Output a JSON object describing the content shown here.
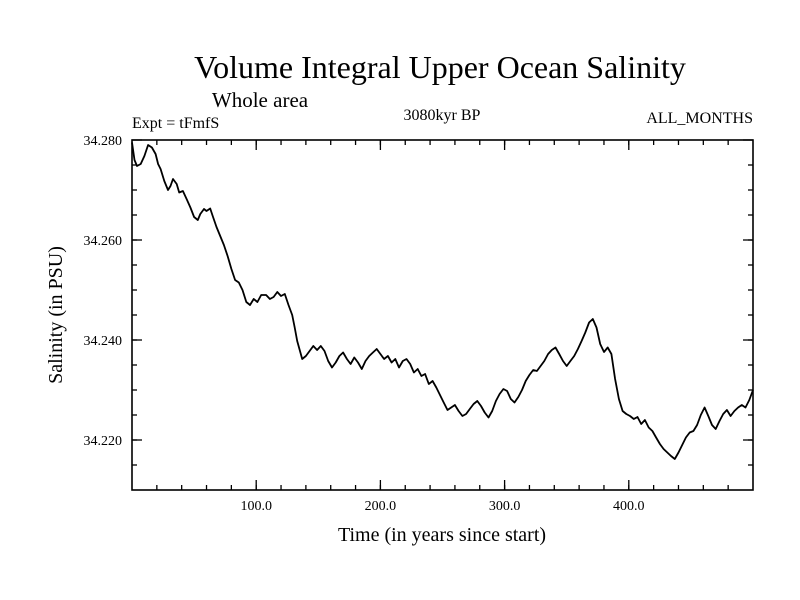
{
  "chart_data": {
    "type": "line",
    "title": "Volume Integral Upper Ocean Salinity",
    "subtitle": "Whole area",
    "experiment": "Expt = tFmfS",
    "period": "3080kyr BP",
    "months": "ALL_MONTHS",
    "xlabel": "Time (in years since start)",
    "ylabel": "Salinity (in PSU)",
    "xlim": [
      0,
      500
    ],
    "ylim": [
      34.21,
      34.28
    ],
    "x_ticks": [
      {
        "value": 100,
        "label": "100.0"
      },
      {
        "value": 200,
        "label": "200.0"
      },
      {
        "value": 300,
        "label": "300.0"
      },
      {
        "value": 400,
        "label": "400.0"
      }
    ],
    "y_ticks": [
      {
        "value": 34.28,
        "label": "34.280"
      },
      {
        "value": 34.26,
        "label": "34.260"
      },
      {
        "value": 34.24,
        "label": "34.240"
      },
      {
        "value": 34.22,
        "label": "34.220"
      }
    ],
    "x_minor_step": 20,
    "y_minor_step": 0.005,
    "series": [
      {
        "name": "Salinity",
        "points": [
          [
            0,
            34.2795
          ],
          [
            2,
            34.276
          ],
          [
            4,
            34.2748
          ],
          [
            7,
            34.2752
          ],
          [
            10,
            34.2768
          ],
          [
            13,
            34.279
          ],
          [
            16,
            34.2785
          ],
          [
            19,
            34.2772
          ],
          [
            21,
            34.2752
          ],
          [
            23,
            34.2742
          ],
          [
            26,
            34.2718
          ],
          [
            29,
            34.27
          ],
          [
            31,
            34.2708
          ],
          [
            33,
            34.2722
          ],
          [
            36,
            34.2712
          ],
          [
            38,
            34.2695
          ],
          [
            41,
            34.2698
          ],
          [
            44,
            34.2682
          ],
          [
            47,
            34.2665
          ],
          [
            50,
            34.2646
          ],
          [
            53,
            34.264
          ],
          [
            55,
            34.2652
          ],
          [
            58,
            34.2662
          ],
          [
            60,
            34.2658
          ],
          [
            63,
            34.2663
          ],
          [
            65,
            34.2648
          ],
          [
            68,
            34.2626
          ],
          [
            71,
            34.2608
          ],
          [
            74,
            34.259
          ],
          [
            77,
            34.2568
          ],
          [
            80,
            34.2542
          ],
          [
            83,
            34.252
          ],
          [
            86,
            34.2515
          ],
          [
            89,
            34.25
          ],
          [
            92,
            34.2476
          ],
          [
            95,
            34.247
          ],
          [
            98,
            34.2482
          ],
          [
            101,
            34.2476
          ],
          [
            104,
            34.249
          ],
          [
            108,
            34.249
          ],
          [
            111,
            34.2482
          ],
          [
            114,
            34.2486
          ],
          [
            117,
            34.2496
          ],
          [
            120,
            34.2488
          ],
          [
            123,
            34.2492
          ],
          [
            126,
            34.247
          ],
          [
            129,
            34.245
          ],
          [
            131,
            34.2425
          ],
          [
            133,
            34.2398
          ],
          [
            135,
            34.238
          ],
          [
            137,
            34.2362
          ],
          [
            140,
            34.2368
          ],
          [
            143,
            34.2378
          ],
          [
            146,
            34.2388
          ],
          [
            149,
            34.238
          ],
          [
            152,
            34.2388
          ],
          [
            155,
            34.2378
          ],
          [
            158,
            34.2358
          ],
          [
            161,
            34.2345
          ],
          [
            164,
            34.2355
          ],
          [
            167,
            34.2368
          ],
          [
            170,
            34.2375
          ],
          [
            173,
            34.2362
          ],
          [
            176,
            34.2352
          ],
          [
            179,
            34.2365
          ],
          [
            182,
            34.2355
          ],
          [
            185,
            34.2342
          ],
          [
            188,
            34.2358
          ],
          [
            191,
            34.2368
          ],
          [
            194,
            34.2375
          ],
          [
            197,
            34.2382
          ],
          [
            200,
            34.2372
          ],
          [
            203,
            34.2362
          ],
          [
            206,
            34.2368
          ],
          [
            209,
            34.2355
          ],
          [
            212,
            34.2362
          ],
          [
            215,
            34.2345
          ],
          [
            218,
            34.2358
          ],
          [
            221,
            34.2362
          ],
          [
            224,
            34.2352
          ],
          [
            227,
            34.2335
          ],
          [
            230,
            34.2342
          ],
          [
            233,
            34.2328
          ],
          [
            236,
            34.2332
          ],
          [
            239,
            34.2312
          ],
          [
            242,
            34.2318
          ],
          [
            245,
            34.2305
          ],
          [
            248,
            34.229
          ],
          [
            251,
            34.2275
          ],
          [
            254,
            34.226
          ],
          [
            257,
            34.2265
          ],
          [
            260,
            34.227
          ],
          [
            263,
            34.2258
          ],
          [
            266,
            34.2248
          ],
          [
            269,
            34.2252
          ],
          [
            272,
            34.2262
          ],
          [
            275,
            34.2272
          ],
          [
            278,
            34.2278
          ],
          [
            281,
            34.2268
          ],
          [
            284,
            34.2255
          ],
          [
            287,
            34.2245
          ],
          [
            290,
            34.2258
          ],
          [
            293,
            34.2278
          ],
          [
            296,
            34.2292
          ],
          [
            299,
            34.2302
          ],
          [
            302,
            34.2298
          ],
          [
            305,
            34.2282
          ],
          [
            308,
            34.2275
          ],
          [
            311,
            34.2286
          ],
          [
            314,
            34.23
          ],
          [
            317,
            34.2318
          ],
          [
            320,
            34.233
          ],
          [
            323,
            34.234
          ],
          [
            326,
            34.2338
          ],
          [
            329,
            34.2348
          ],
          [
            332,
            34.2358
          ],
          [
            335,
            34.2372
          ],
          [
            338,
            34.238
          ],
          [
            341,
            34.2385
          ],
          [
            344,
            34.2372
          ],
          [
            347,
            34.2358
          ],
          [
            350,
            34.2348
          ],
          [
            353,
            34.2358
          ],
          [
            356,
            34.2368
          ],
          [
            359,
            34.2382
          ],
          [
            362,
            34.2398
          ],
          [
            365,
            34.2415
          ],
          [
            368,
            34.2435
          ],
          [
            371,
            34.2442
          ],
          [
            374,
            34.2425
          ],
          [
            377,
            34.2392
          ],
          [
            380,
            34.2376
          ],
          [
            383,
            34.2385
          ],
          [
            386,
            34.2372
          ],
          [
            389,
            34.2322
          ],
          [
            392,
            34.2282
          ],
          [
            395,
            34.2258
          ],
          [
            398,
            34.2252
          ],
          [
            401,
            34.2248
          ],
          [
            404,
            34.2242
          ],
          [
            407,
            34.2246
          ],
          [
            410,
            34.2232
          ],
          [
            413,
            34.224
          ],
          [
            416,
            34.2225
          ],
          [
            419,
            34.2218
          ],
          [
            422,
            34.2205
          ],
          [
            425,
            34.2192
          ],
          [
            428,
            34.2182
          ],
          [
            431,
            34.2175
          ],
          [
            434,
            34.2168
          ],
          [
            437,
            34.2162
          ],
          [
            440,
            34.2175
          ],
          [
            443,
            34.219
          ],
          [
            446,
            34.2205
          ],
          [
            449,
            34.2215
          ],
          [
            452,
            34.2218
          ],
          [
            455,
            34.223
          ],
          [
            458,
            34.225
          ],
          [
            461,
            34.2265
          ],
          [
            464,
            34.2248
          ],
          [
            467,
            34.223
          ],
          [
            470,
            34.2222
          ],
          [
            473,
            34.2238
          ],
          [
            476,
            34.2252
          ],
          [
            479,
            34.226
          ],
          [
            482,
            34.2248
          ],
          [
            485,
            34.2258
          ],
          [
            488,
            34.2265
          ],
          [
            491,
            34.227
          ],
          [
            494,
            34.2265
          ],
          [
            497,
            34.228
          ],
          [
            500,
            34.23
          ]
        ]
      }
    ]
  }
}
